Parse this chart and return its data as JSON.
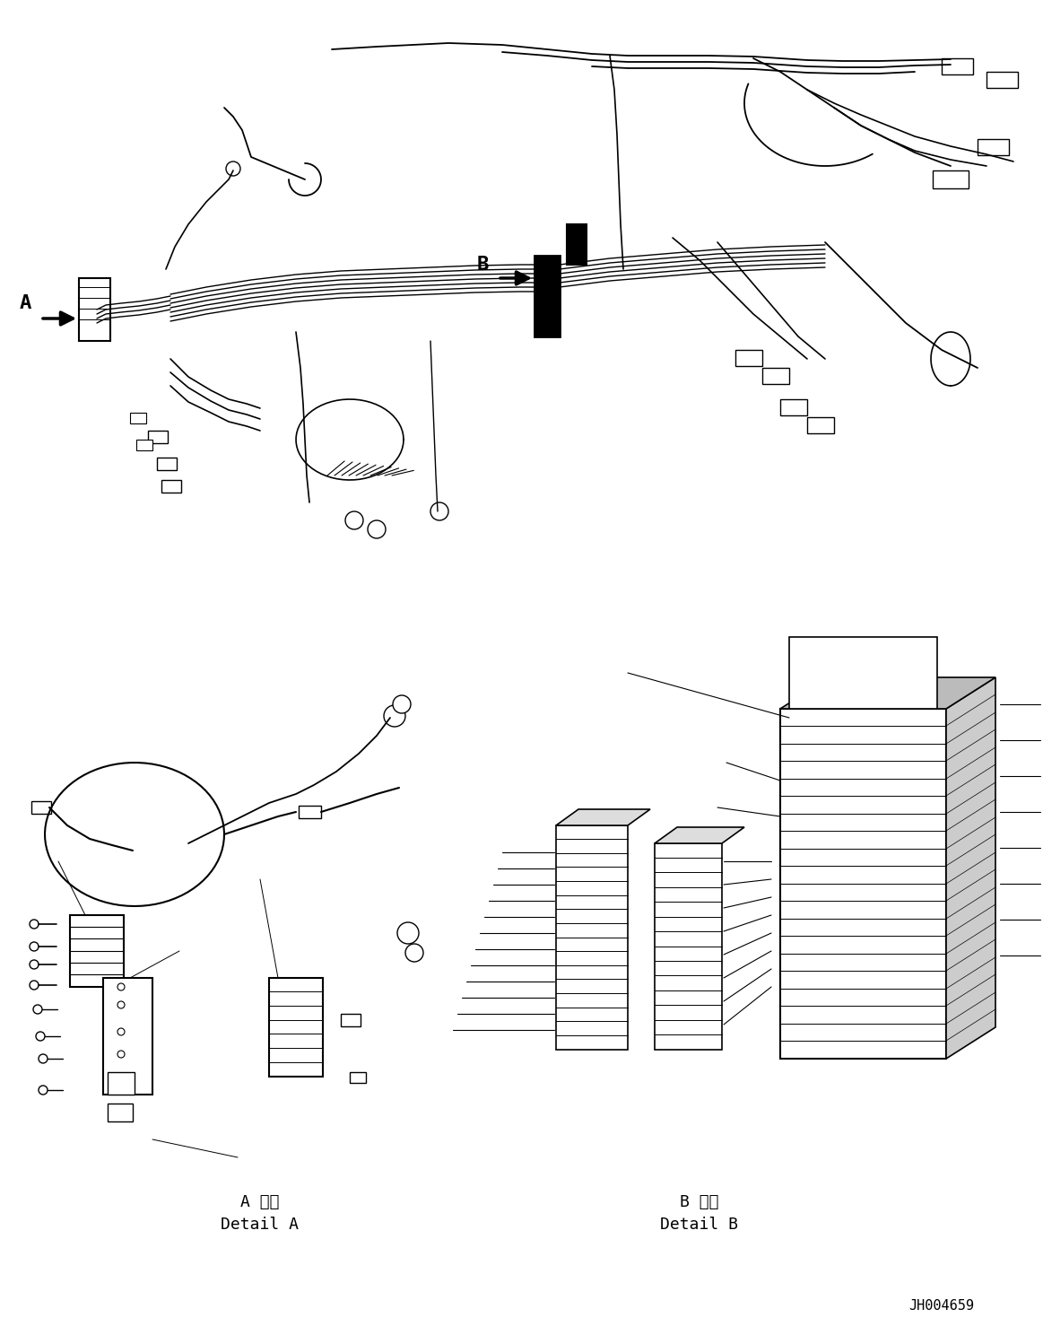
{
  "background_color": "#ffffff",
  "line_color": "#000000",
  "text_color": "#000000",
  "figure_width": 11.63,
  "figure_height": 14.88,
  "dpi": 100,
  "part_id": "JH004659",
  "detail_A_jp": "A 詳細",
  "detail_A_en": "Detail A",
  "detail_B_jp": "B 詳細",
  "detail_B_en": "Detail B"
}
